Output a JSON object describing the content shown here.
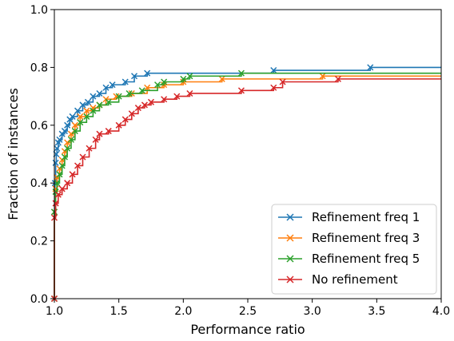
{
  "chart_data": {
    "type": "line",
    "step": true,
    "xlabel": "Performance ratio",
    "ylabel": "Fraction of instances",
    "xlim": [
      1.0,
      4.0
    ],
    "ylim": [
      0.0,
      1.0
    ],
    "xticks": [
      "1.0",
      "1.5",
      "2.0",
      "2.5",
      "3.0",
      "3.5",
      "4.0"
    ],
    "yticks": [
      "0.0",
      "0.2",
      "0.4",
      "0.6",
      "0.8",
      "1.0"
    ],
    "grid": false,
    "legend_position": "bottom-right",
    "series": [
      {
        "name": "Refinement freq 1",
        "color": "#1f77b4",
        "points": [
          [
            1.0,
            0.0
          ],
          [
            1.0,
            0.3
          ],
          [
            1.005,
            0.4
          ],
          [
            1.01,
            0.47
          ],
          [
            1.015,
            0.5
          ],
          [
            1.02,
            0.52
          ],
          [
            1.03,
            0.54
          ],
          [
            1.04,
            0.55
          ],
          [
            1.06,
            0.57
          ],
          [
            1.08,
            0.58
          ],
          [
            1.1,
            0.6
          ],
          [
            1.12,
            0.62
          ],
          [
            1.14,
            0.63
          ],
          [
            1.18,
            0.65
          ],
          [
            1.22,
            0.67
          ],
          [
            1.26,
            0.68
          ],
          [
            1.3,
            0.7
          ],
          [
            1.35,
            0.71
          ],
          [
            1.4,
            0.73
          ],
          [
            1.45,
            0.74
          ],
          [
            1.55,
            0.75
          ],
          [
            1.62,
            0.77
          ],
          [
            1.72,
            0.78
          ],
          [
            2.7,
            0.79
          ],
          [
            3.45,
            0.8
          ],
          [
            4.0,
            0.8
          ]
        ]
      },
      {
        "name": "Refinement freq 3",
        "color": "#ff7f0e",
        "points": [
          [
            1.0,
            0.0
          ],
          [
            1.0,
            0.3
          ],
          [
            1.01,
            0.38
          ],
          [
            1.02,
            0.42
          ],
          [
            1.04,
            0.45
          ],
          [
            1.06,
            0.48
          ],
          [
            1.08,
            0.51
          ],
          [
            1.1,
            0.54
          ],
          [
            1.13,
            0.57
          ],
          [
            1.16,
            0.6
          ],
          [
            1.2,
            0.63
          ],
          [
            1.25,
            0.65
          ],
          [
            1.3,
            0.66
          ],
          [
            1.35,
            0.67
          ],
          [
            1.4,
            0.69
          ],
          [
            1.48,
            0.7
          ],
          [
            1.6,
            0.71
          ],
          [
            1.72,
            0.73
          ],
          [
            1.85,
            0.74
          ],
          [
            2.0,
            0.75
          ],
          [
            2.3,
            0.76
          ],
          [
            3.08,
            0.77
          ],
          [
            4.0,
            0.77
          ]
        ]
      },
      {
        "name": "Refinement freq 5",
        "color": "#2ca02c",
        "points": [
          [
            1.0,
            0.0
          ],
          [
            1.0,
            0.3
          ],
          [
            1.01,
            0.37
          ],
          [
            1.02,
            0.4
          ],
          [
            1.04,
            0.43
          ],
          [
            1.06,
            0.46
          ],
          [
            1.08,
            0.49
          ],
          [
            1.1,
            0.52
          ],
          [
            1.13,
            0.55
          ],
          [
            1.16,
            0.58
          ],
          [
            1.2,
            0.61
          ],
          [
            1.25,
            0.63
          ],
          [
            1.3,
            0.65
          ],
          [
            1.35,
            0.67
          ],
          [
            1.42,
            0.68
          ],
          [
            1.5,
            0.7
          ],
          [
            1.58,
            0.71
          ],
          [
            1.68,
            0.72
          ],
          [
            1.8,
            0.74
          ],
          [
            1.85,
            0.75
          ],
          [
            2.0,
            0.76
          ],
          [
            2.05,
            0.77
          ],
          [
            2.45,
            0.78
          ],
          [
            4.0,
            0.78
          ]
        ]
      },
      {
        "name": "No refinement",
        "color": "#d62728",
        "points": [
          [
            1.0,
            0.0
          ],
          [
            1.0,
            0.28
          ],
          [
            1.01,
            0.33
          ],
          [
            1.03,
            0.36
          ],
          [
            1.06,
            0.38
          ],
          [
            1.1,
            0.4
          ],
          [
            1.14,
            0.43
          ],
          [
            1.18,
            0.46
          ],
          [
            1.22,
            0.49
          ],
          [
            1.27,
            0.52
          ],
          [
            1.32,
            0.55
          ],
          [
            1.35,
            0.57
          ],
          [
            1.42,
            0.58
          ],
          [
            1.5,
            0.6
          ],
          [
            1.55,
            0.62
          ],
          [
            1.6,
            0.64
          ],
          [
            1.65,
            0.66
          ],
          [
            1.7,
            0.67
          ],
          [
            1.75,
            0.68
          ],
          [
            1.85,
            0.69
          ],
          [
            1.95,
            0.7
          ],
          [
            2.05,
            0.71
          ],
          [
            2.45,
            0.72
          ],
          [
            2.7,
            0.73
          ],
          [
            2.77,
            0.75
          ],
          [
            3.2,
            0.76
          ],
          [
            4.0,
            0.76
          ]
        ]
      }
    ]
  }
}
